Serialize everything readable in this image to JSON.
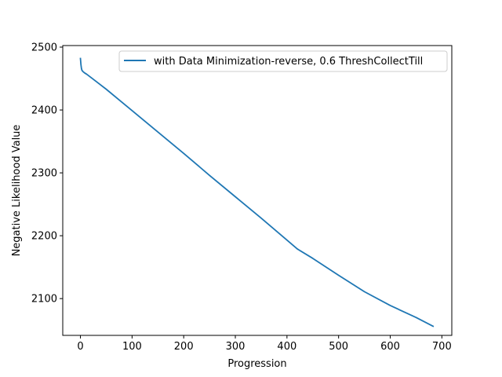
{
  "chart_data": {
    "type": "line",
    "title": "",
    "xlabel": "Progression",
    "ylabel": "Negative Likelihood Value",
    "xlim": [
      -34.25,
      719.25
    ],
    "ylim": [
      2041.5,
      2502.5
    ],
    "xticks": [
      0,
      100,
      200,
      300,
      400,
      500,
      600,
      700
    ],
    "yticks": [
      2100,
      2200,
      2300,
      2400,
      2500
    ],
    "grid": false,
    "legend_position": "top-right",
    "series": [
      {
        "name": "with Data Minimization-reverse, 0.6 ThreshCollectTill",
        "color": "#1f77b4",
        "x": [
          0,
          1,
          2,
          3,
          5,
          8,
          12,
          20,
          50,
          100,
          150,
          200,
          250,
          300,
          350,
          400,
          420,
          450,
          500,
          550,
          600,
          650,
          683
        ],
        "y": [
          2482,
          2472,
          2466,
          2463,
          2461,
          2459,
          2457,
          2452,
          2433,
          2399,
          2365,
          2331,
          2296,
          2262,
          2228,
          2193,
          2179,
          2164,
          2137,
          2111,
          2089,
          2070,
          2056
        ]
      }
    ]
  }
}
